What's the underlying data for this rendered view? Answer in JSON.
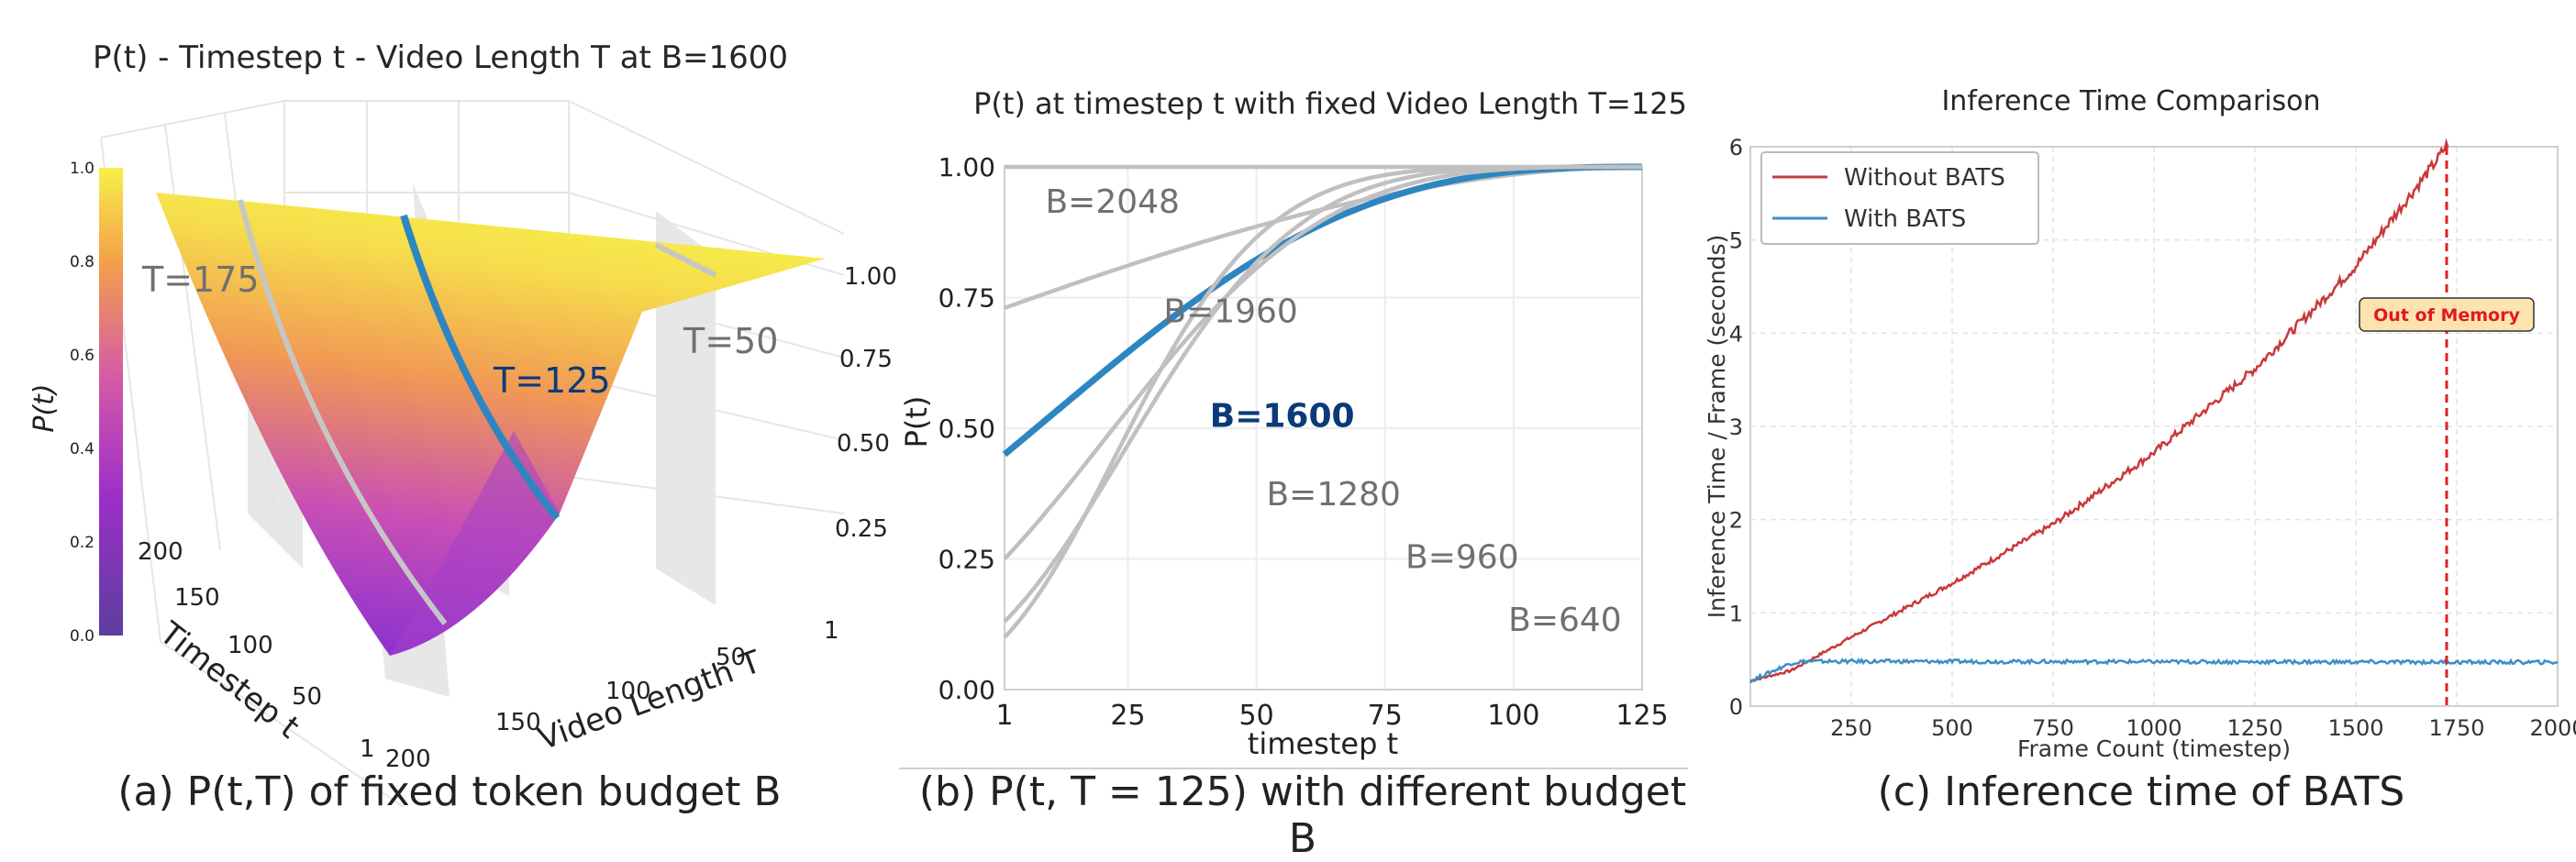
{
  "chart_data": [
    {
      "type": "surface3d",
      "title": "P(t) - Timestep t - Video Length T at B=1600",
      "caption": "(a) P(t,T) of fixed token budget B",
      "zlabel": "P(t)",
      "xlabel": "Timestep t",
      "ylabel": "Video Length T",
      "colorbar_ticks": [
        "0.0",
        "0.2",
        "0.4",
        "0.6",
        "0.8",
        "1.0"
      ],
      "z_ticks": [
        "1.00",
        "0.75",
        "0.50",
        "0.25"
      ],
      "x_ticks": [
        "200",
        "150",
        "100",
        "50",
        "1"
      ],
      "y_ticks": [
        "200",
        "150",
        "100",
        "50",
        "1"
      ],
      "curve_labels": [
        "T=175",
        "T=125",
        "T=50"
      ],
      "budget": 1600,
      "colormap": [
        "#5c3f9e",
        "#9d2fc9",
        "#d45aa6",
        "#f4a04a",
        "#f7f04a"
      ]
    },
    {
      "type": "line",
      "title": "P(t) at timestep t with fixed Video Length T=125",
      "caption": "(b) P(t, T = 125) with different budget B",
      "xlabel": "timestep t",
      "ylabel": "P(t)",
      "xlim": [
        1,
        125
      ],
      "ylim": [
        0,
        1
      ],
      "x_ticks": [
        "1",
        "25",
        "50",
        "75",
        "100",
        "125"
      ],
      "y_ticks": [
        "0.00",
        "0.25",
        "0.50",
        "0.75",
        "1.00"
      ],
      "series": [
        {
          "label": "B=2048",
          "start": 1.0,
          "highlight": false
        },
        {
          "label": "B=1960",
          "start": 0.73,
          "highlight": false
        },
        {
          "label": "B=1600",
          "start": 0.45,
          "highlight": true
        },
        {
          "label": "B=1280",
          "start": 0.25,
          "highlight": false
        },
        {
          "label": "B=960",
          "start": 0.13,
          "highlight": false
        },
        {
          "label": "B=640",
          "start": 0.1,
          "highlight": false
        }
      ],
      "colors": {
        "highlight": "#2e86c1",
        "normal": "#c0c0c0",
        "highlight_label": "#0b3a7a",
        "label": "#707070"
      }
    },
    {
      "type": "line",
      "title": "Inference Time Comparison",
      "caption": "(c) Inference time of BATS",
      "xlabel": "Frame Count (timestep)",
      "ylabel": "Inference Time / Frame (seconds)",
      "xlim": [
        0,
        2000
      ],
      "ylim": [
        0,
        6
      ],
      "x_ticks": [
        "250",
        "500",
        "750",
        "1000",
        "1250",
        "1500",
        "1750",
        "2000"
      ],
      "y_ticks": [
        "0",
        "1",
        "2",
        "3",
        "4",
        "5",
        "6"
      ],
      "series": [
        {
          "name": "Without BATS",
          "color": "#c9383a",
          "points": [
            [
              0,
              0.27
            ],
            [
              100,
              0.38
            ],
            [
              250,
              0.74
            ],
            [
              500,
              1.32
            ],
            [
              750,
              1.95
            ],
            [
              1000,
              2.72
            ],
            [
              1250,
              3.62
            ],
            [
              1500,
              4.72
            ],
            [
              1700,
              5.85
            ],
            [
              1730,
              6.05
            ]
          ]
        },
        {
          "name": "With BATS",
          "color": "#3b8fc6",
          "points": [
            [
              0,
              0.27
            ],
            [
              100,
              0.46
            ],
            [
              130,
              0.48
            ],
            [
              2000,
              0.47
            ]
          ]
        }
      ],
      "vline": {
        "x": 1725,
        "color": "#e32020"
      },
      "annotation": {
        "text": "Out of Memory",
        "x": 1725,
        "y": 4.2
      },
      "legend": "top-left",
      "grid": true
    }
  ]
}
